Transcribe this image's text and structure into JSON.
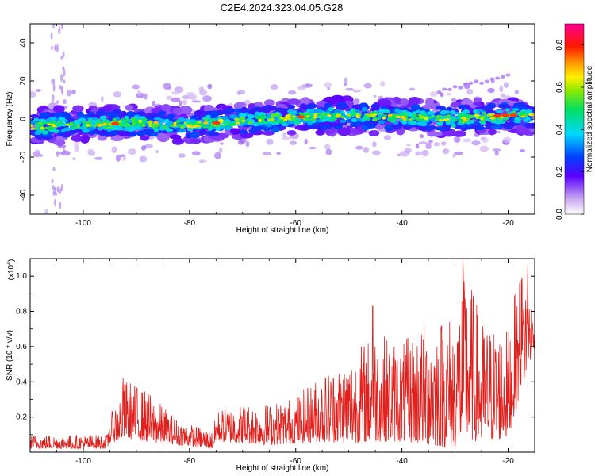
{
  "title": "C2E4.2024.323.04.05.G28",
  "chart_data": [
    {
      "type": "heatmap",
      "xlabel": "Height of straight line (km)",
      "ylabel": "Frequency (Hz)",
      "xlim": [
        -110,
        -15
      ],
      "ylim": [
        -50,
        50
      ],
      "x_ticks": [
        -100,
        -80,
        -60,
        -40,
        -20
      ],
      "x_tick_labels": [
        "-100",
        "-80",
        "-60",
        "-40",
        "-20"
      ],
      "y_ticks": [
        -40,
        -20,
        0,
        20,
        40
      ],
      "y_tick_labels": [
        "-40",
        "-20",
        "0",
        "20",
        "40"
      ],
      "colorbar": {
        "label": "Normalized spectral amplitude",
        "range": [
          0,
          0.9
        ],
        "ticks": [
          0,
          0.2,
          0.4,
          0.6,
          0.8
        ],
        "tick_labels": [
          "0.0",
          "0.2",
          "0.4",
          "0.6",
          "0.8"
        ],
        "colormap": "rainbow (white → purple → blue → cyan → green → yellow → orange → red → magenta)"
      },
      "ridge": {
        "description": "narrow band of high amplitude drifting slowly upward in frequency",
        "points": [
          {
            "x": -110,
            "y": -4
          },
          {
            "x": -100,
            "y": -3
          },
          {
            "x": -90,
            "y": -2
          },
          {
            "x": -80,
            "y": -3
          },
          {
            "x": -70,
            "y": -1
          },
          {
            "x": -60,
            "y": 1
          },
          {
            "x": -50,
            "y": 2
          },
          {
            "x": -40,
            "y": 1
          },
          {
            "x": -30,
            "y": 0
          },
          {
            "x": -20,
            "y": 2
          },
          {
            "x": -15,
            "y": 2
          }
        ]
      },
      "grid": false
    },
    {
      "type": "line",
      "xlabel": "Height of straight line (km)",
      "ylabel": "SNR (10 * v/v)",
      "y_multiplier_label": "(x10",
      "y_multiplier_exp": "4",
      "y_multiplier_close": ")",
      "xlim": [
        -110,
        -15
      ],
      "ylim": [
        0,
        1.1
      ],
      "x_ticks": [
        -100,
        -80,
        -60,
        -40,
        -20
      ],
      "x_tick_labels": [
        "-100",
        "-80",
        "-60",
        "-40",
        "-20"
      ],
      "y_ticks": [
        0.2,
        0.4,
        0.6,
        0.8,
        1.0
      ],
      "y_tick_labels": [
        "0.2",
        "0.4",
        "0.6",
        "0.8",
        "1.0"
      ],
      "series_color": "#e0201c",
      "envelope": [
        {
          "x": -110,
          "low": 0.02,
          "high": 0.1
        },
        {
          "x": -95.5,
          "low": 0.02,
          "high": 0.1
        },
        {
          "x": -95,
          "low": 0.05,
          "high": 0.2
        },
        {
          "x": -92,
          "low": 0.08,
          "high": 0.42
        },
        {
          "x": -88,
          "low": 0.06,
          "high": 0.35
        },
        {
          "x": -82,
          "low": 0.04,
          "high": 0.18
        },
        {
          "x": -75.5,
          "low": 0.02,
          "high": 0.12
        },
        {
          "x": -75,
          "low": 0.06,
          "high": 0.24
        },
        {
          "x": -70,
          "low": 0.05,
          "high": 0.28
        },
        {
          "x": -65,
          "low": 0.04,
          "high": 0.28
        },
        {
          "x": -60,
          "low": 0.05,
          "high": 0.32
        },
        {
          "x": -55,
          "low": 0.06,
          "high": 0.45
        },
        {
          "x": -50,
          "low": 0.05,
          "high": 0.55
        },
        {
          "x": -45,
          "low": 0.06,
          "high": 0.7
        },
        {
          "x": -40,
          "low": 0.06,
          "high": 0.62
        },
        {
          "x": -35,
          "low": 0.04,
          "high": 0.78
        },
        {
          "x": -30,
          "low": 0.02,
          "high": 0.8
        },
        {
          "x": -28,
          "low": 0.08,
          "high": 1.08
        },
        {
          "x": -25,
          "low": 0.05,
          "high": 0.75
        },
        {
          "x": -20,
          "low": 0.08,
          "high": 0.7
        },
        {
          "x": -18,
          "low": 0.3,
          "high": 1.02
        },
        {
          "x": -16.5,
          "low": 0.45,
          "high": 1.07
        },
        {
          "x": -15,
          "low": 0.6,
          "high": 0.75
        }
      ],
      "peaks": [
        {
          "x": -92.5,
          "y": 0.42
        },
        {
          "x": -45.5,
          "y": 0.83
        },
        {
          "x": -28.5,
          "y": 1.09
        },
        {
          "x": -17.5,
          "y": 0.98
        },
        {
          "x": -16.3,
          "y": 1.07
        }
      ],
      "grid": false
    }
  ]
}
